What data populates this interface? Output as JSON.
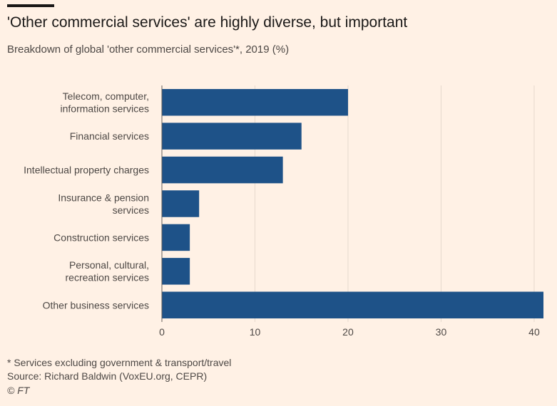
{
  "header": {
    "title": "'Other commercial services' are highly diverse, but important",
    "subtitle": "Breakdown of global 'other commercial services'*, 2019 (%)"
  },
  "chart_data": {
    "type": "bar",
    "orientation": "horizontal",
    "categories": [
      [
        "Telecom, computer,",
        "information services"
      ],
      [
        "Financial services"
      ],
      [
        "Intellectual property charges"
      ],
      [
        "Insurance & pension",
        "services"
      ],
      [
        "Construction services"
      ],
      [
        "Personal, cultural,",
        "recreation services"
      ],
      [
        "Other business services"
      ]
    ],
    "values": [
      20,
      15,
      13,
      4,
      3,
      3,
      41
    ],
    "xlim": [
      0,
      41
    ],
    "xticks": [
      0,
      10,
      20,
      30,
      40
    ],
    "grid": true,
    "bar_color": "#1e5288",
    "grid_color": "#e6d9ce"
  },
  "footer": {
    "footnote": "* Services excluding government & transport/travel",
    "source": "Source: Richard Baldwin (VoxEU.org, CEPR)",
    "copyright": "© FT"
  }
}
